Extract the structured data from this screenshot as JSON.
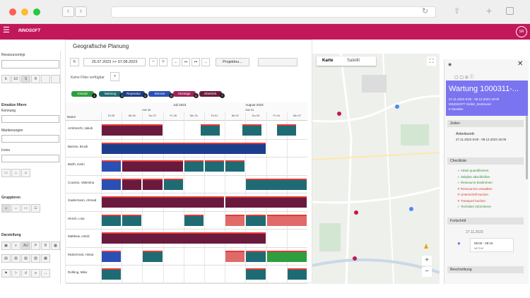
{
  "app": {
    "logo": "INNOSOFT",
    "avatar": "SR"
  },
  "left": {
    "ressourcentyp": "Ressourcentyp",
    "type_buttons": [
      "E",
      "E2",
      "S",
      "B"
    ],
    "filter_title": "Einsätze filtern",
    "kennung": "Kennung",
    "markierungen": "Markierungen",
    "icons": "Icons",
    "gruppieren": "Gruppieren",
    "darstellung": "Darstellung",
    "au": "AU",
    "p": "P",
    "b": "B"
  },
  "main": {
    "title": "Geografische Planung",
    "date_range": "25.07.2023 >> 07.08.2023",
    "project_select": "Projektnu...",
    "filter_text": "Keine Filter verfügbar",
    "chips": [
      {
        "label": "Einsatz",
        "color": "#2e9e3e",
        "count": "1"
      },
      {
        "label": "Wartung",
        "color": "#1f6b73",
        "count": "3"
      },
      {
        "label": "Reparatur",
        "color": "#1a3e8c",
        "count": "4"
      },
      {
        "label": "Service",
        "color": "#2a4fb5",
        "count": "5"
      },
      {
        "label": "Montage",
        "color": "#a0205a",
        "count": "6"
      },
      {
        "label": "Inbetrieb.",
        "color": "#6a1a3d",
        "count": "7"
      }
    ],
    "months": [
      "Juli 2023",
      "August 2023"
    ],
    "weeks": [
      "KW 30",
      "KW 31"
    ],
    "days": [
      "Di 25",
      "Mi 26",
      "Do 27",
      "Fr 28",
      "Mo 31",
      "Di 01",
      "Mi 02",
      "Do 03",
      "Fr 04",
      "Mo 07"
    ],
    "name_header": "Name",
    "rows": [
      "Armbrecht, Jakob",
      "Barnes, Brook",
      "Barth, Karin",
      "Cousins, Valentina",
      "Gadermann, Ahmad",
      "Hirsch, Lisa",
      "Matthew, Astrid",
      "McDermott, Himar",
      "Rohling, Mike"
    ]
  },
  "map": {
    "tab_map": "Karte",
    "tab_sat": "Satellit"
  },
  "detail": {
    "title": "Wartung 1000311-...",
    "line1": "27.11.2023 8:00 - 08.12.2023 16:00",
    "line2": "INNOSOFT GmbH_Dortmund",
    "line3": "8 Stunden",
    "zeiten": "Zeiten",
    "arbeitszeit": "Arbeitszeit:",
    "arbeitszeit_val": "27.11.2023 8:00 - 08.12.2023 16:00",
    "checkliste": "Checkliste",
    "checks": [
      {
        "t": "Arbeit quantifizieren",
        "ok": true
      },
      {
        "t": "Zeitplan abschließen",
        "ok": true
      },
      {
        "t": "Ressource bestimmen",
        "ok": true
      },
      {
        "t": "Ressourcen verwalten",
        "ok": false
      },
      {
        "t": "Unterschrift buchen",
        "ok": false
      },
      {
        "t": "Transport buchen",
        "ok": false
      },
      {
        "t": "Techniker informieren",
        "ok": true
      }
    ],
    "fortschritt": "Fortschritt",
    "fdate": "27.11.2023",
    "ftime": "08:00 - 08:15",
    "fsub": "METHIS",
    "beschreibung": "Beschreibung"
  }
}
